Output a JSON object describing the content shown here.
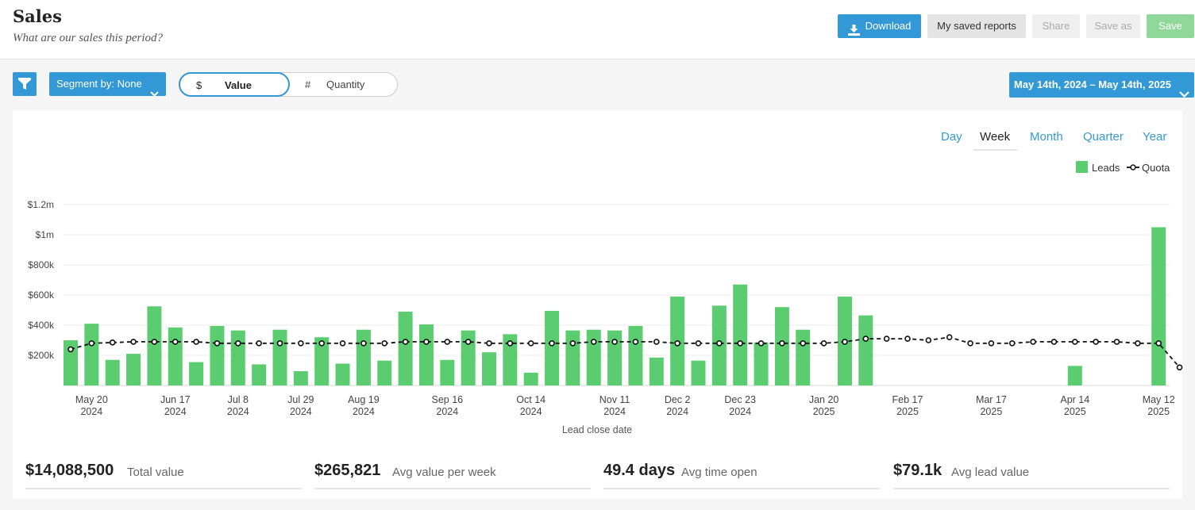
{
  "header": {
    "title": "Sales",
    "subtitle": "What are our sales this period?",
    "buttons": {
      "download": "Download",
      "saved_reports": "My saved reports",
      "share": "Share",
      "save_as": "Save as",
      "save": "Save"
    }
  },
  "toolbar": {
    "segment_label": "Segment by: None",
    "toggle": {
      "value_symbol": "$",
      "value_label": "Value",
      "quantity_symbol": "#",
      "quantity_label": "Quantity",
      "selected": "Value"
    },
    "date_range": "May 14th, 2024 – May 14th, 2025"
  },
  "period_tabs": {
    "day": "Day",
    "week": "Week",
    "month": "Month",
    "quarter": "Quarter",
    "year": "Year",
    "active": "Week"
  },
  "colors": {
    "accent": "#3399d6",
    "leads_bar": "#5ccc70",
    "save_button": "#8fd899"
  },
  "chart_data": {
    "type": "bar",
    "xlabel": "Lead close date",
    "ylabel": "",
    "ylim": [
      0,
      1200000
    ],
    "yticks": [
      {
        "value": 200000,
        "label": "$200k"
      },
      {
        "value": 400000,
        "label": "$400k"
      },
      {
        "value": 600000,
        "label": "$600k"
      },
      {
        "value": 800000,
        "label": "$800k"
      },
      {
        "value": 1000000,
        "label": "$1m"
      },
      {
        "value": 1200000,
        "label": "$1.2m"
      }
    ],
    "grid": true,
    "legend_position": "top-right",
    "x_tick_labels": [
      {
        "index": 1,
        "line1": "May 20",
        "line2": "2024"
      },
      {
        "index": 5,
        "line1": "Jun 17",
        "line2": "2024"
      },
      {
        "index": 8,
        "line1": "Jul 8",
        "line2": "2024"
      },
      {
        "index": 11,
        "line1": "Jul 29",
        "line2": "2024"
      },
      {
        "index": 14,
        "line1": "Aug 19",
        "line2": "2024"
      },
      {
        "index": 18,
        "line1": "Sep 16",
        "line2": "2024"
      },
      {
        "index": 22,
        "line1": "Oct 14",
        "line2": "2024"
      },
      {
        "index": 26,
        "line1": "Nov 11",
        "line2": "2024"
      },
      {
        "index": 29,
        "line1": "Dec 2",
        "line2": "2024"
      },
      {
        "index": 32,
        "line1": "Dec 23",
        "line2": "2024"
      },
      {
        "index": 36,
        "line1": "Jan 20",
        "line2": "2025"
      },
      {
        "index": 40,
        "line1": "Feb 17",
        "line2": "2025"
      },
      {
        "index": 44,
        "line1": "Mar 17",
        "line2": "2025"
      },
      {
        "index": 48,
        "line1": "Apr 14",
        "line2": "2025"
      },
      {
        "index": 52,
        "line1": "May 12",
        "line2": "2025"
      }
    ],
    "series": [
      {
        "name": "Leads",
        "kind": "bar",
        "values": [
          300000,
          410000,
          170000,
          210000,
          525000,
          385000,
          155000,
          395000,
          365000,
          140000,
          370000,
          95000,
          320000,
          145000,
          370000,
          165000,
          490000,
          405000,
          170000,
          365000,
          220000,
          340000,
          85000,
          495000,
          365000,
          370000,
          365000,
          395000,
          185000,
          590000,
          165000,
          530000,
          670000,
          285000,
          520000,
          370000,
          0,
          590000,
          465000,
          0,
          0,
          0,
          0,
          0,
          0,
          0,
          0,
          0,
          130000,
          0,
          0,
          0,
          1050000,
          0
        ]
      },
      {
        "name": "Quota",
        "kind": "line-dashed",
        "values": [
          240000,
          280000,
          285000,
          290000,
          290000,
          290000,
          290000,
          280000,
          280000,
          280000,
          280000,
          280000,
          280000,
          280000,
          280000,
          280000,
          290000,
          290000,
          290000,
          290000,
          280000,
          280000,
          280000,
          280000,
          280000,
          290000,
          290000,
          290000,
          290000,
          280000,
          280000,
          280000,
          280000,
          280000,
          280000,
          280000,
          280000,
          290000,
          310000,
          310000,
          310000,
          300000,
          320000,
          280000,
          280000,
          280000,
          290000,
          290000,
          290000,
          290000,
          290000,
          280000,
          280000,
          120000
        ]
      }
    ]
  },
  "stats": [
    {
      "value": "$14,088,500",
      "label": "Total value"
    },
    {
      "value": "$265,821",
      "label": "Avg value per week"
    },
    {
      "value": "49.4 days",
      "label": "Avg time open"
    },
    {
      "value": "$79.1k",
      "label": "Avg lead value"
    }
  ]
}
